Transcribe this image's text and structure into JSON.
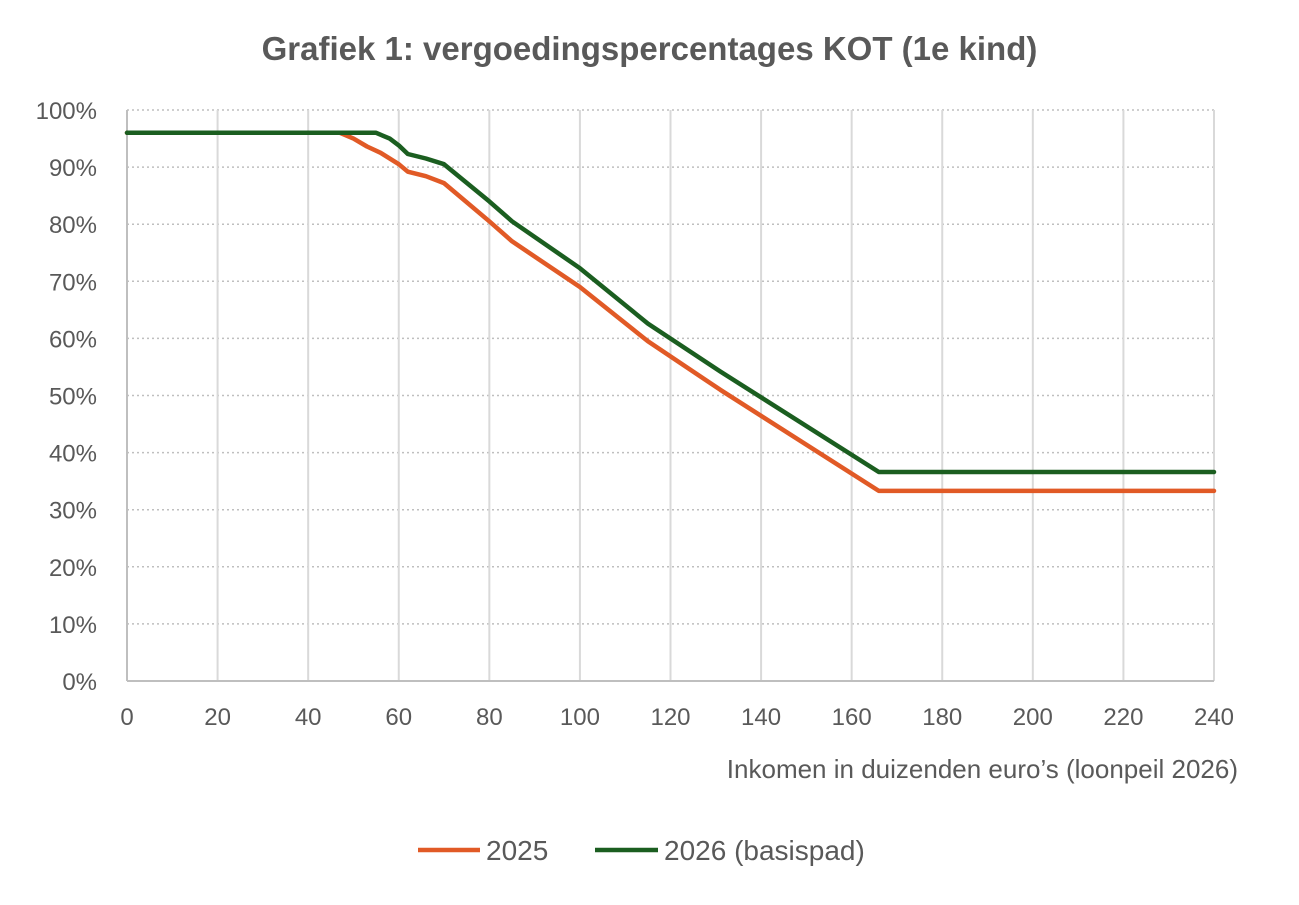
{
  "chart_data": {
    "type": "line",
    "title": "Grafiek 1: vergoedingspercentages KOT (1e kind)",
    "xlabel": "Inkomen in duizenden euro’s (loonpeil 2026)",
    "ylabel": "",
    "xlim": [
      0,
      240
    ],
    "ylim": [
      0,
      100
    ],
    "x_ticks": [
      0,
      20,
      40,
      60,
      80,
      100,
      120,
      140,
      160,
      180,
      200,
      220,
      240
    ],
    "x_tick_labels": [
      "0",
      "20",
      "40",
      "60",
      "80",
      "100",
      "120",
      "140",
      "160",
      "180",
      "200",
      "220",
      "240"
    ],
    "y_ticks": [
      0,
      10,
      20,
      30,
      40,
      50,
      60,
      70,
      80,
      90,
      100
    ],
    "y_tick_labels": [
      "0%",
      "10%",
      "20%",
      "30%",
      "40%",
      "50%",
      "60%",
      "70%",
      "80%",
      "90%",
      "100%"
    ],
    "grid": {
      "vertical": "solid",
      "horizontal": "dotted"
    },
    "legend_position": "bottom-center",
    "series": [
      {
        "name": "2025",
        "color": "#E15A26",
        "x": [
          0,
          47,
          50,
          53,
          56,
          60,
          62,
          66,
          70,
          80,
          85,
          100,
          115,
          131,
          166,
          240
        ],
        "y": [
          96,
          96,
          95,
          93.6,
          92.5,
          90.5,
          89.2,
          88.4,
          87.2,
          80.5,
          77,
          69,
          59.5,
          51,
          33.3,
          33.3
        ]
      },
      {
        "name": "2026 (basispad)",
        "color": "#1B5E20",
        "x": [
          0,
          54,
          55,
          58,
          60,
          62,
          66,
          70,
          80,
          85,
          100,
          115,
          131,
          166,
          240
        ],
        "y": [
          96,
          96,
          96,
          95,
          93.8,
          92.3,
          91.5,
          90.5,
          84,
          80.5,
          72.3,
          62.6,
          54.2,
          36.6,
          36.6
        ]
      }
    ]
  }
}
